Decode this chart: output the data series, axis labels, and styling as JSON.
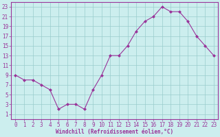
{
  "x_vals": [
    0,
    1,
    2,
    3,
    4,
    5,
    6,
    7,
    8,
    9,
    10,
    11,
    12,
    13,
    14,
    15,
    16,
    17,
    18,
    19,
    20,
    21,
    22,
    23
  ],
  "y_vals": [
    9,
    8,
    8,
    7,
    6,
    2,
    3,
    3,
    2,
    6,
    9,
    13,
    13,
    15,
    18,
    20,
    21,
    23,
    22,
    22,
    20,
    17,
    15,
    13
  ],
  "line_color": "#993399",
  "marker_color": "#993399",
  "bg_color": "#cceeee",
  "grid_color": "#99cccc",
  "xlabel": "Windchill (Refroidissement éolien,°C)",
  "xlabel_color": "#993399",
  "yticks": [
    1,
    3,
    5,
    7,
    9,
    11,
    13,
    15,
    17,
    19,
    21,
    23
  ],
  "xticks": [
    0,
    1,
    2,
    3,
    4,
    5,
    6,
    7,
    8,
    9,
    10,
    11,
    12,
    13,
    14,
    15,
    16,
    17,
    18,
    19,
    20,
    21,
    22,
    23
  ],
  "ylim": [
    0,
    24
  ],
  "xlim": [
    -0.5,
    23.5
  ],
  "tick_fontsize": 5.5,
  "xlabel_fontsize": 5.5
}
